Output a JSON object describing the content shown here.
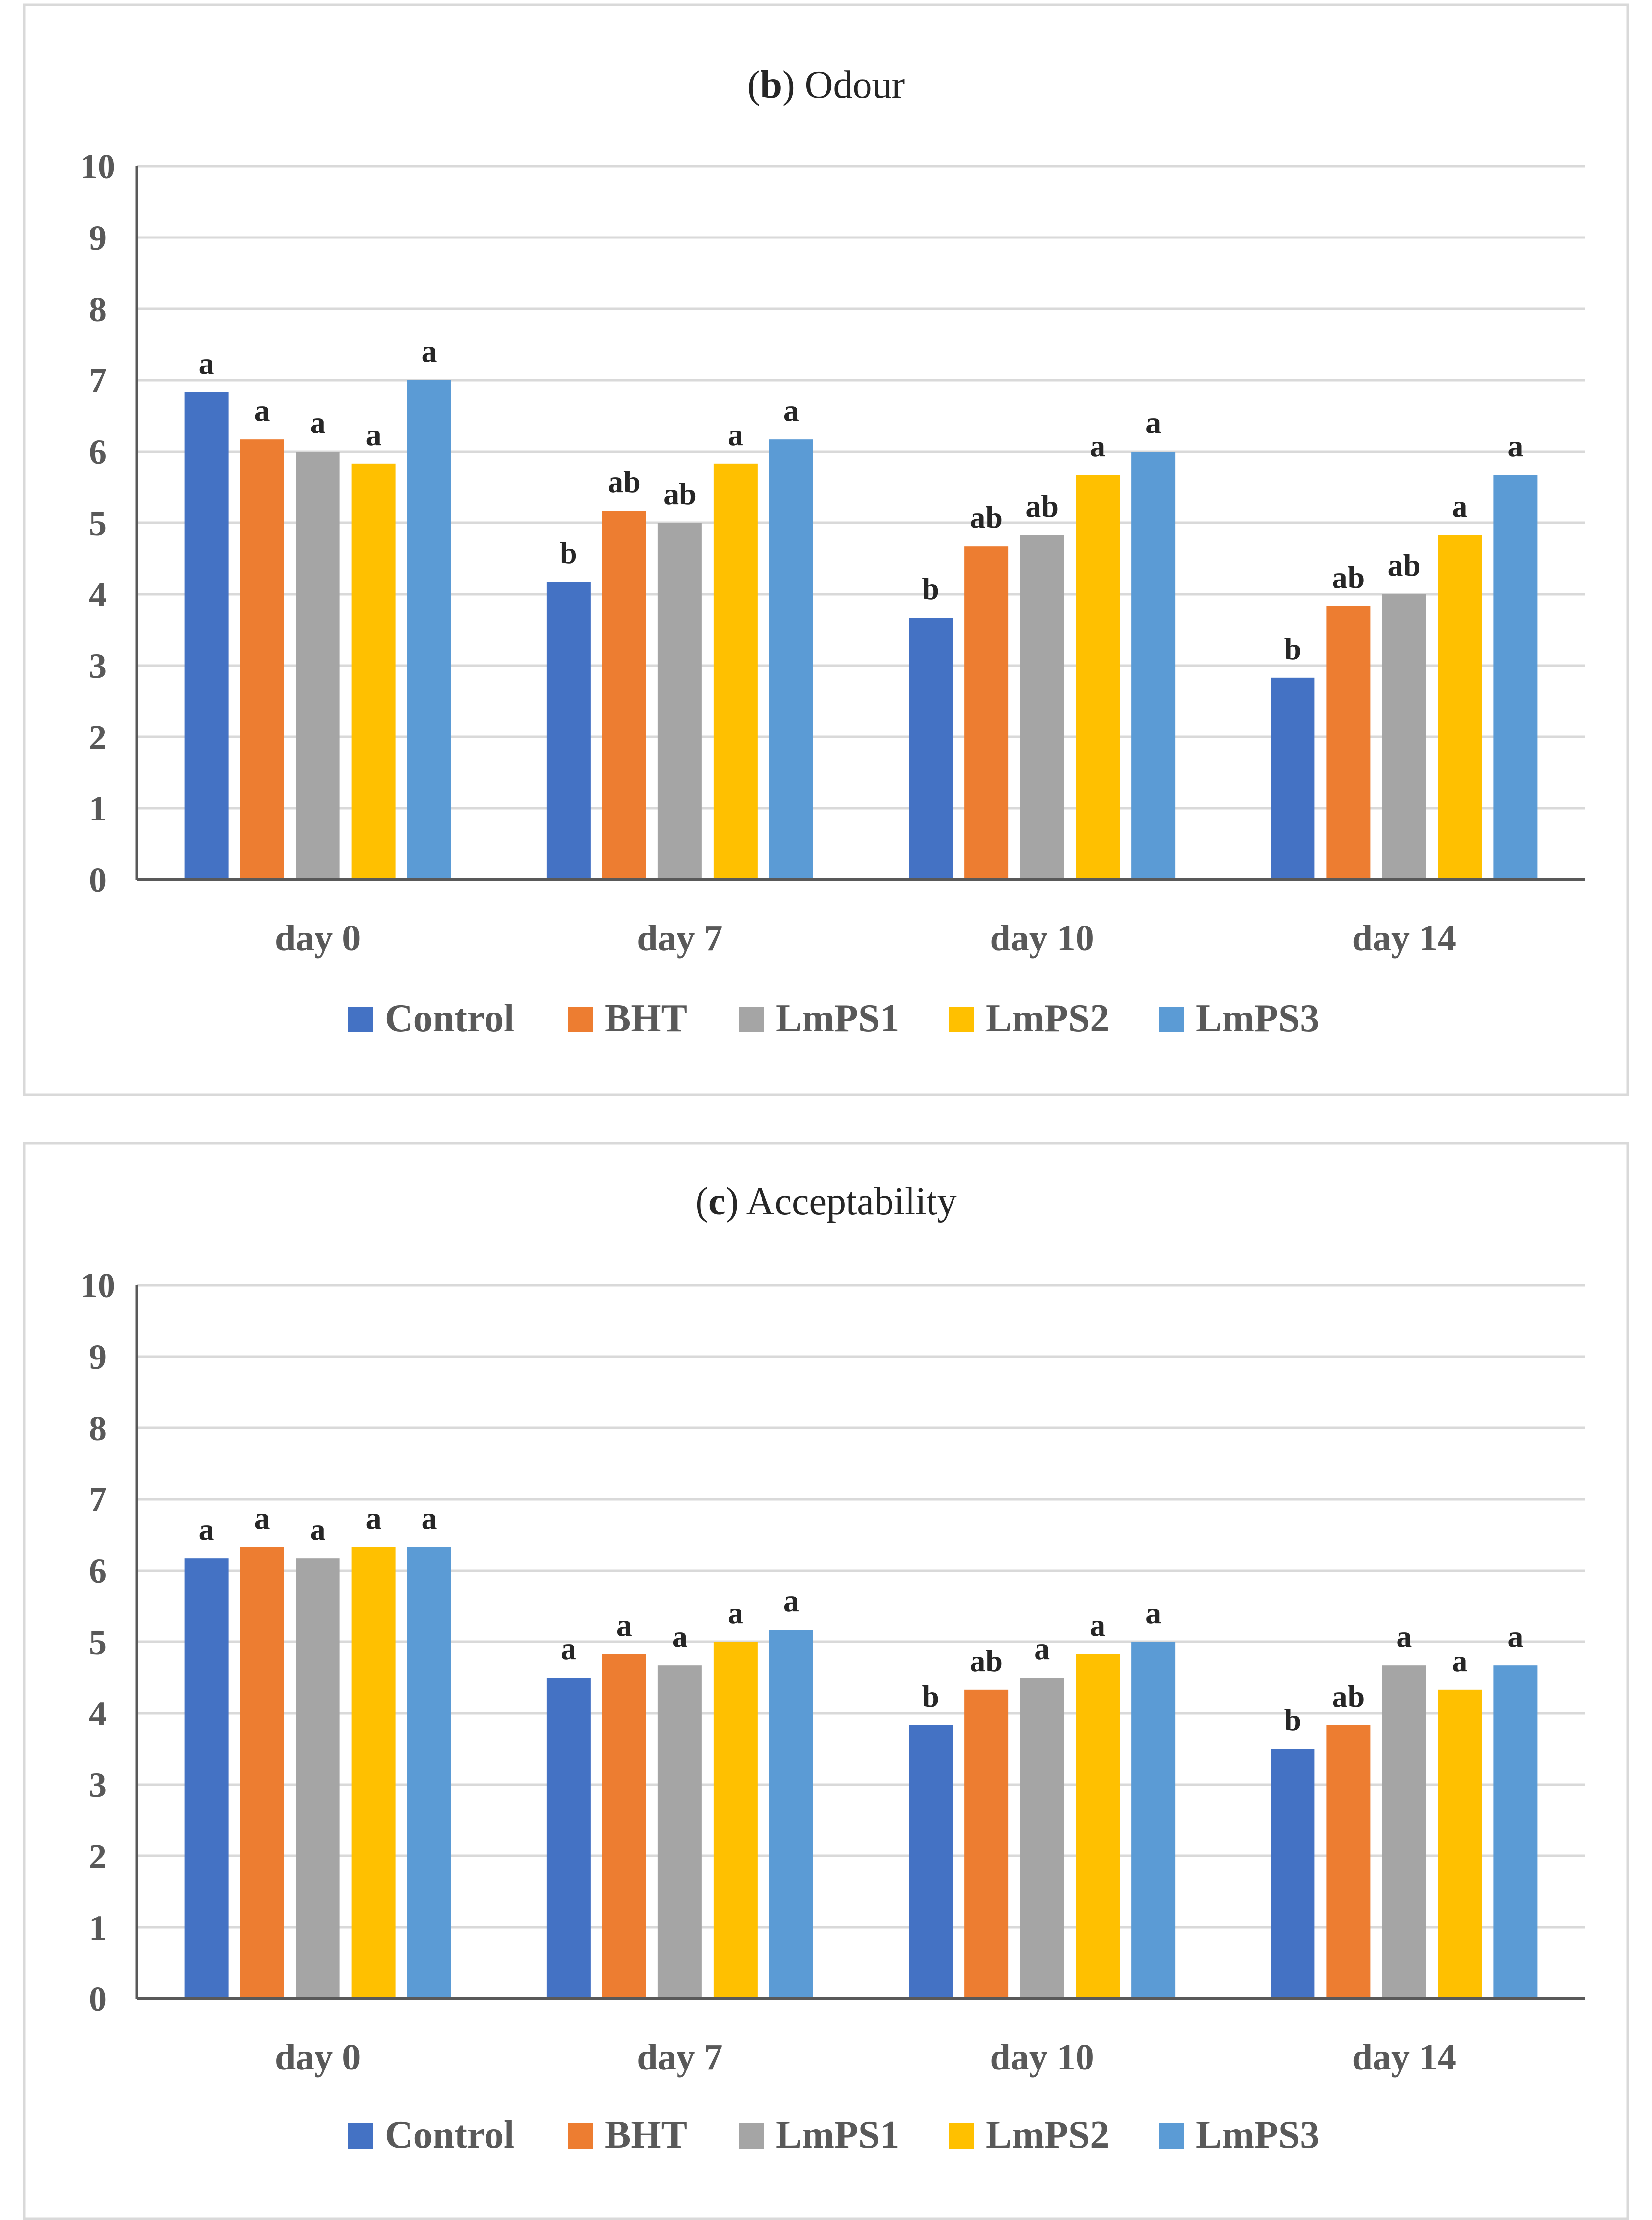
{
  "colors": {
    "Control": "#4472C4",
    "BHT": "#ED7D31",
    "LmPS1": "#A5A5A5",
    "LmPS2": "#FFC000",
    "LmPS3": "#5B9BD5",
    "grid": "#D9D9D9",
    "axis": "#595959",
    "border": "#D9D9D9",
    "text": "#262626",
    "tick_text": "#595959"
  },
  "chart_data": [
    {
      "type": "bar",
      "panel": "chart-odour",
      "title_prefix": "(",
      "title_letter": "b",
      "title_suffix": ") Odour",
      "xlabel": "",
      "ylabel": "",
      "ylim": [
        0,
        10
      ],
      "yticks": [
        "0",
        "1",
        "2",
        "3",
        "4",
        "5",
        "6",
        "7",
        "8",
        "9",
        "10"
      ],
      "categories": [
        "day 0",
        "day 7",
        "day 10",
        "day 14"
      ],
      "legend_position": "bottom",
      "series": [
        {
          "name": "Control",
          "values": [
            6.83,
            4.17,
            3.67,
            2.83
          ],
          "labels": [
            "a",
            "b",
            "b",
            "b"
          ]
        },
        {
          "name": "BHT",
          "values": [
            6.17,
            5.17,
            4.67,
            3.83
          ],
          "labels": [
            "a",
            "ab",
            "ab",
            "ab"
          ]
        },
        {
          "name": "LmPS1",
          "values": [
            6.0,
            5.0,
            4.83,
            4.0
          ],
          "labels": [
            "a",
            "ab",
            "ab",
            "ab"
          ]
        },
        {
          "name": "LmPS2",
          "values": [
            5.83,
            5.83,
            5.67,
            4.83
          ],
          "labels": [
            "a",
            "a",
            "a",
            "a"
          ]
        },
        {
          "name": "LmPS3",
          "values": [
            7.0,
            6.17,
            6.0,
            5.67
          ],
          "labels": [
            "a",
            "a",
            "a",
            "a"
          ]
        }
      ]
    },
    {
      "type": "bar",
      "panel": "chart-acceptability",
      "title_prefix": "(",
      "title_letter": "c",
      "title_suffix": ") Acceptability",
      "xlabel": "",
      "ylabel": "",
      "ylim": [
        0,
        10
      ],
      "yticks": [
        "0",
        "1",
        "2",
        "3",
        "4",
        "5",
        "6",
        "7",
        "8",
        "9",
        "10"
      ],
      "categories": [
        "day 0",
        "day 7",
        "day 10",
        "day 14"
      ],
      "legend_position": "bottom",
      "series": [
        {
          "name": "Control",
          "values": [
            6.17,
            4.5,
            3.83,
            3.5
          ],
          "labels": [
            "a",
            "a",
            "b",
            "b"
          ]
        },
        {
          "name": "BHT",
          "values": [
            6.33,
            4.83,
            4.33,
            3.83
          ],
          "labels": [
            "a",
            "a",
            "ab",
            "ab"
          ]
        },
        {
          "name": "LmPS1",
          "values": [
            6.17,
            4.67,
            4.5,
            4.67
          ],
          "labels": [
            "a",
            "a",
            "a",
            "a"
          ]
        },
        {
          "name": "LmPS2",
          "values": [
            6.33,
            5.0,
            4.83,
            4.33
          ],
          "labels": [
            "a",
            "a",
            "a",
            "a"
          ]
        },
        {
          "name": "LmPS3",
          "values": [
            6.33,
            5.17,
            5.0,
            4.67
          ],
          "labels": [
            "a",
            "a",
            "a",
            "a"
          ]
        }
      ]
    }
  ]
}
